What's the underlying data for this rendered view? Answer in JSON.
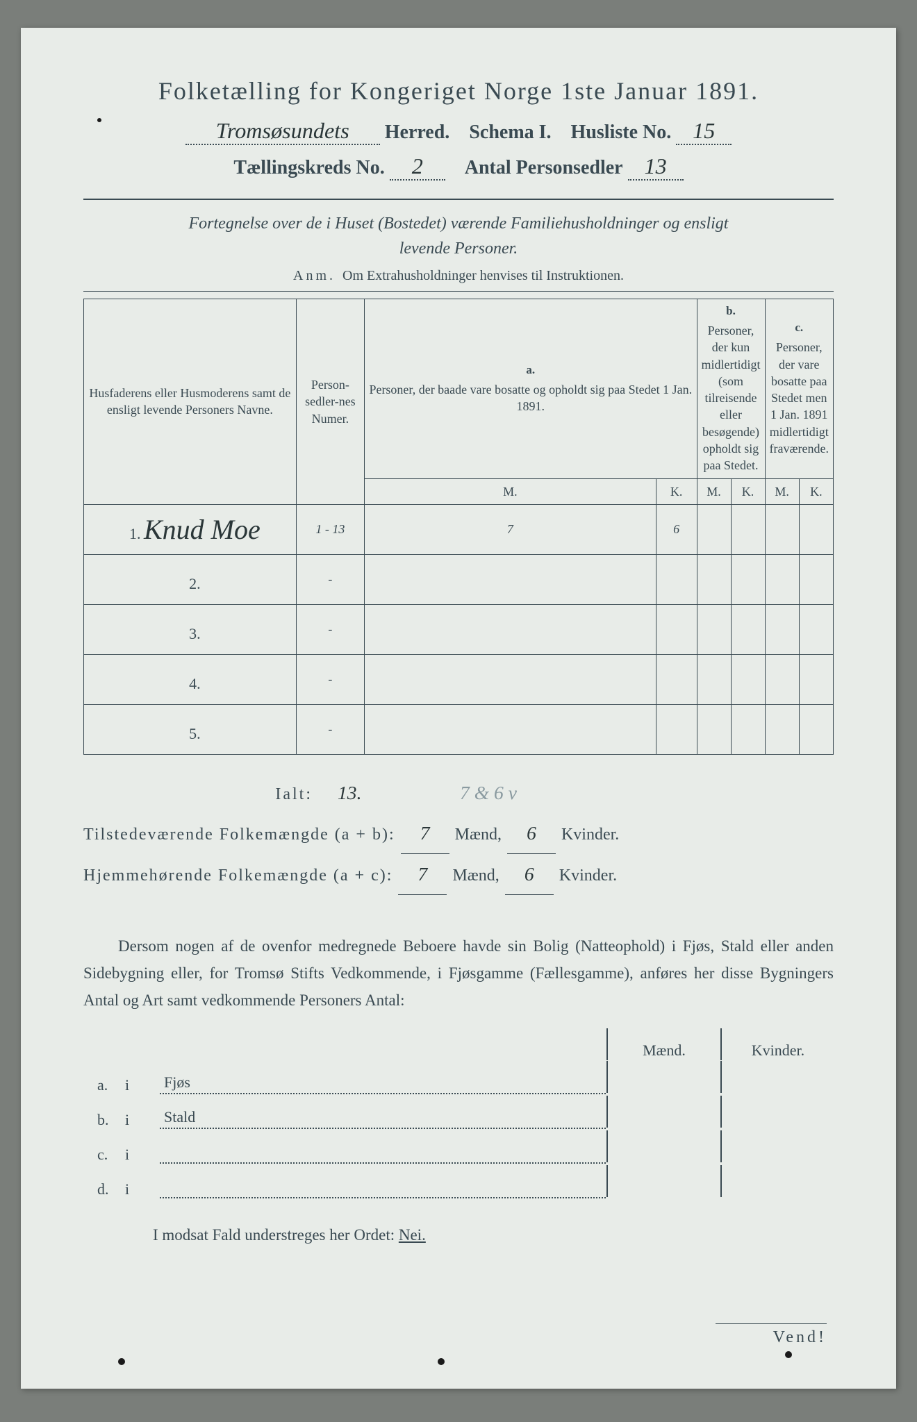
{
  "header": {
    "title": "Folketælling for Kongeriget Norge 1ste Januar 1891.",
    "herred_hand": "Tromsøsundets",
    "herred_label": "Herred.",
    "schema_label": "Schema I.",
    "husliste_label": "Husliste No.",
    "husliste_no": "15",
    "kreds_label": "Tællingskreds No.",
    "kreds_no": "2",
    "antal_label": "Antal Personsedler",
    "antal_no": "13"
  },
  "desc": {
    "line1": "Fortegnelse over de i Huset (Bostedet) værende Familiehusholdninger og ensligt",
    "line2": "levende Personer.",
    "anm_prefix": "Anm.",
    "anm_text": "Om Extrahusholdninger henvises til Instruktionen."
  },
  "table": {
    "col_name": "Husfaderens eller Husmoderens samt de ensligt levende Personers Navne.",
    "col_num": "Person-sedler-nes Numer.",
    "col_a_letter": "a.",
    "col_a": "Personer, der baade vare bosatte og opholdt sig paa Stedet 1 Jan. 1891.",
    "col_b_letter": "b.",
    "col_b": "Personer, der kun midlertidigt (som tilreisende eller besøgende) opholdt sig paa Stedet.",
    "col_c_letter": "c.",
    "col_c": "Personer, der vare bosatte paa Stedet men 1 Jan. 1891 midlertidigt fraværende.",
    "m": "M.",
    "k": "K.",
    "rows": [
      {
        "n": "1.",
        "name": "Knud Moe",
        "num": "1 - 13",
        "am": "7",
        "ak": "6",
        "bm": "",
        "bk": "",
        "cm": "",
        "ck": ""
      },
      {
        "n": "2.",
        "name": "",
        "num": "-",
        "am": "",
        "ak": "",
        "bm": "",
        "bk": "",
        "cm": "",
        "ck": ""
      },
      {
        "n": "3.",
        "name": "",
        "num": "-",
        "am": "",
        "ak": "",
        "bm": "",
        "bk": "",
        "cm": "",
        "ck": ""
      },
      {
        "n": "4.",
        "name": "",
        "num": "-",
        "am": "",
        "ak": "",
        "bm": "",
        "bk": "",
        "cm": "",
        "ck": ""
      },
      {
        "n": "5.",
        "name": "",
        "num": "-",
        "am": "",
        "ak": "",
        "bm": "",
        "bk": "",
        "cm": "",
        "ck": ""
      }
    ]
  },
  "totals": {
    "ialt_label": "Ialt:",
    "ialt_num": "13.",
    "ialt_extra": "7 & 6 v",
    "tilst_label": "Tilstedeværende Folkemængde (a + b):",
    "hjem_label": "Hjemmehørende Folkemængde (a + c):",
    "maend": "Mænd,",
    "kvinder": "Kvinder.",
    "tilst_m": "7",
    "tilst_k": "6",
    "hjem_m": "7",
    "hjem_k": "6"
  },
  "para": "Dersom nogen af de ovenfor medregnede Beboere havde sin Bolig (Natteophold) i Fjøs, Stald eller anden Sidebygning eller, for Tromsø Stifts Vedkommende, i Fjøsgamme (Fællesgamme), anføres her disse Bygningers Antal og Art samt vedkommende Personers Antal:",
  "bldg": {
    "head_m": "Mænd.",
    "head_k": "Kvinder.",
    "rows": [
      {
        "a": "a.",
        "b": "i",
        "label": "Fjøs"
      },
      {
        "a": "b.",
        "b": "i",
        "label": "Stald"
      },
      {
        "a": "c.",
        "b": "i",
        "label": ""
      },
      {
        "a": "d.",
        "b": "i",
        "label": ""
      }
    ]
  },
  "nei": {
    "prefix": "I modsat Fald understreges her Ordet:",
    "word": "Nei."
  },
  "vend": "Vend!",
  "colors": {
    "page_bg": "#e8ece8",
    "ink": "#3a4a52",
    "outer_bg": "#7a7e7a",
    "hand_ink": "#2a3638"
  },
  "fontsizes": {
    "title": 36,
    "sub": 28,
    "desc": 24,
    "anm": 20,
    "th": 18,
    "row": 30,
    "totals": 24,
    "para": 23,
    "bldg": 22,
    "vend": 24
  }
}
